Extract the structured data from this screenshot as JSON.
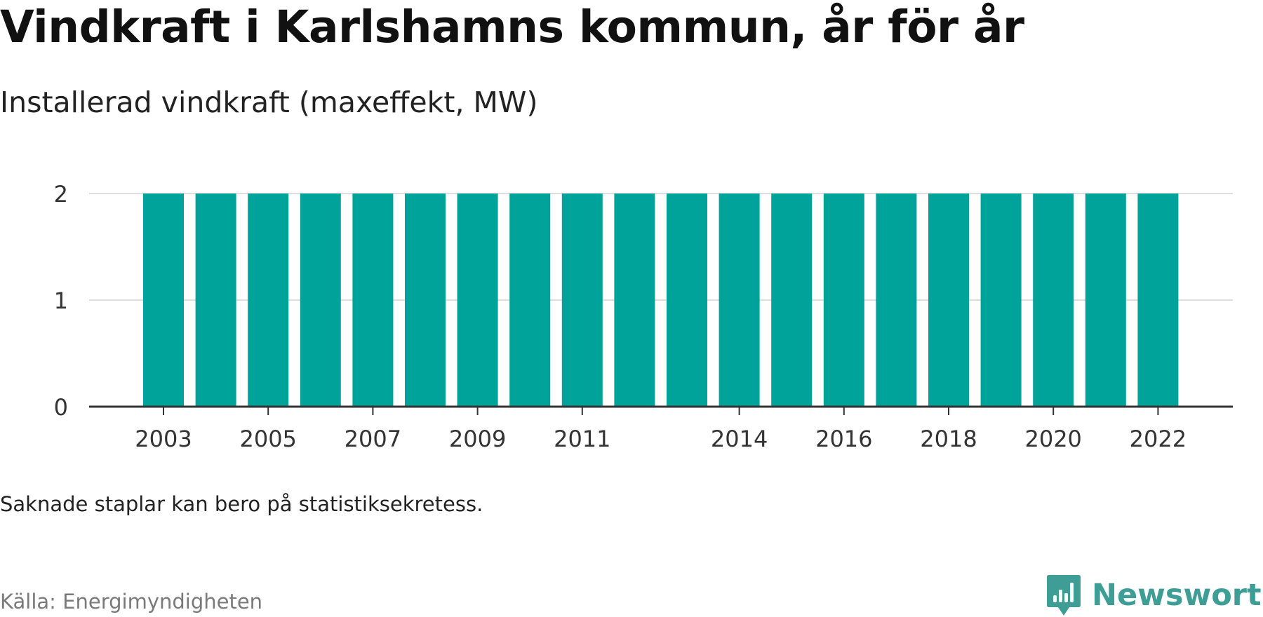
{
  "header": {
    "title": "Vindkraft i Karlshamns kommun, år för år",
    "subtitle": "Installerad vindkraft (maxeffekt, MW)"
  },
  "footer": {
    "note": "Saknade staplar kan bero på statistiksekretess.",
    "source": "Källa: Energimyndigheten",
    "brand": "Newsworthy",
    "brand_icon": "chart-bubble-icon"
  },
  "colors": {
    "bar": "#00a39a",
    "brand": "#3e9e96",
    "grid": "#dddddd",
    "axis": "#333333"
  },
  "chart_data": {
    "type": "bar",
    "categories": [
      "2003",
      "2004",
      "2005",
      "2006",
      "2007",
      "2008",
      "2009",
      "2010",
      "2011",
      "2012",
      "2013",
      "2014",
      "2015",
      "2016",
      "2017",
      "2018",
      "2019",
      "2020",
      "2021",
      "2022"
    ],
    "values": [
      2,
      2,
      2,
      2,
      2,
      2,
      2,
      2,
      2,
      2,
      2,
      2,
      2,
      2,
      2,
      2,
      2,
      2,
      2,
      2
    ],
    "tick_labels": [
      "2003",
      "2005",
      "2007",
      "2009",
      "2011",
      "2014",
      "2016",
      "2018",
      "2020",
      "2022"
    ],
    "yticks": [
      0,
      1,
      2
    ],
    "ylim": [
      0,
      2
    ],
    "grid": true,
    "title": "Vindkraft i Karlshamns kommun, år för år",
    "xlabel": "",
    "ylabel": ""
  }
}
